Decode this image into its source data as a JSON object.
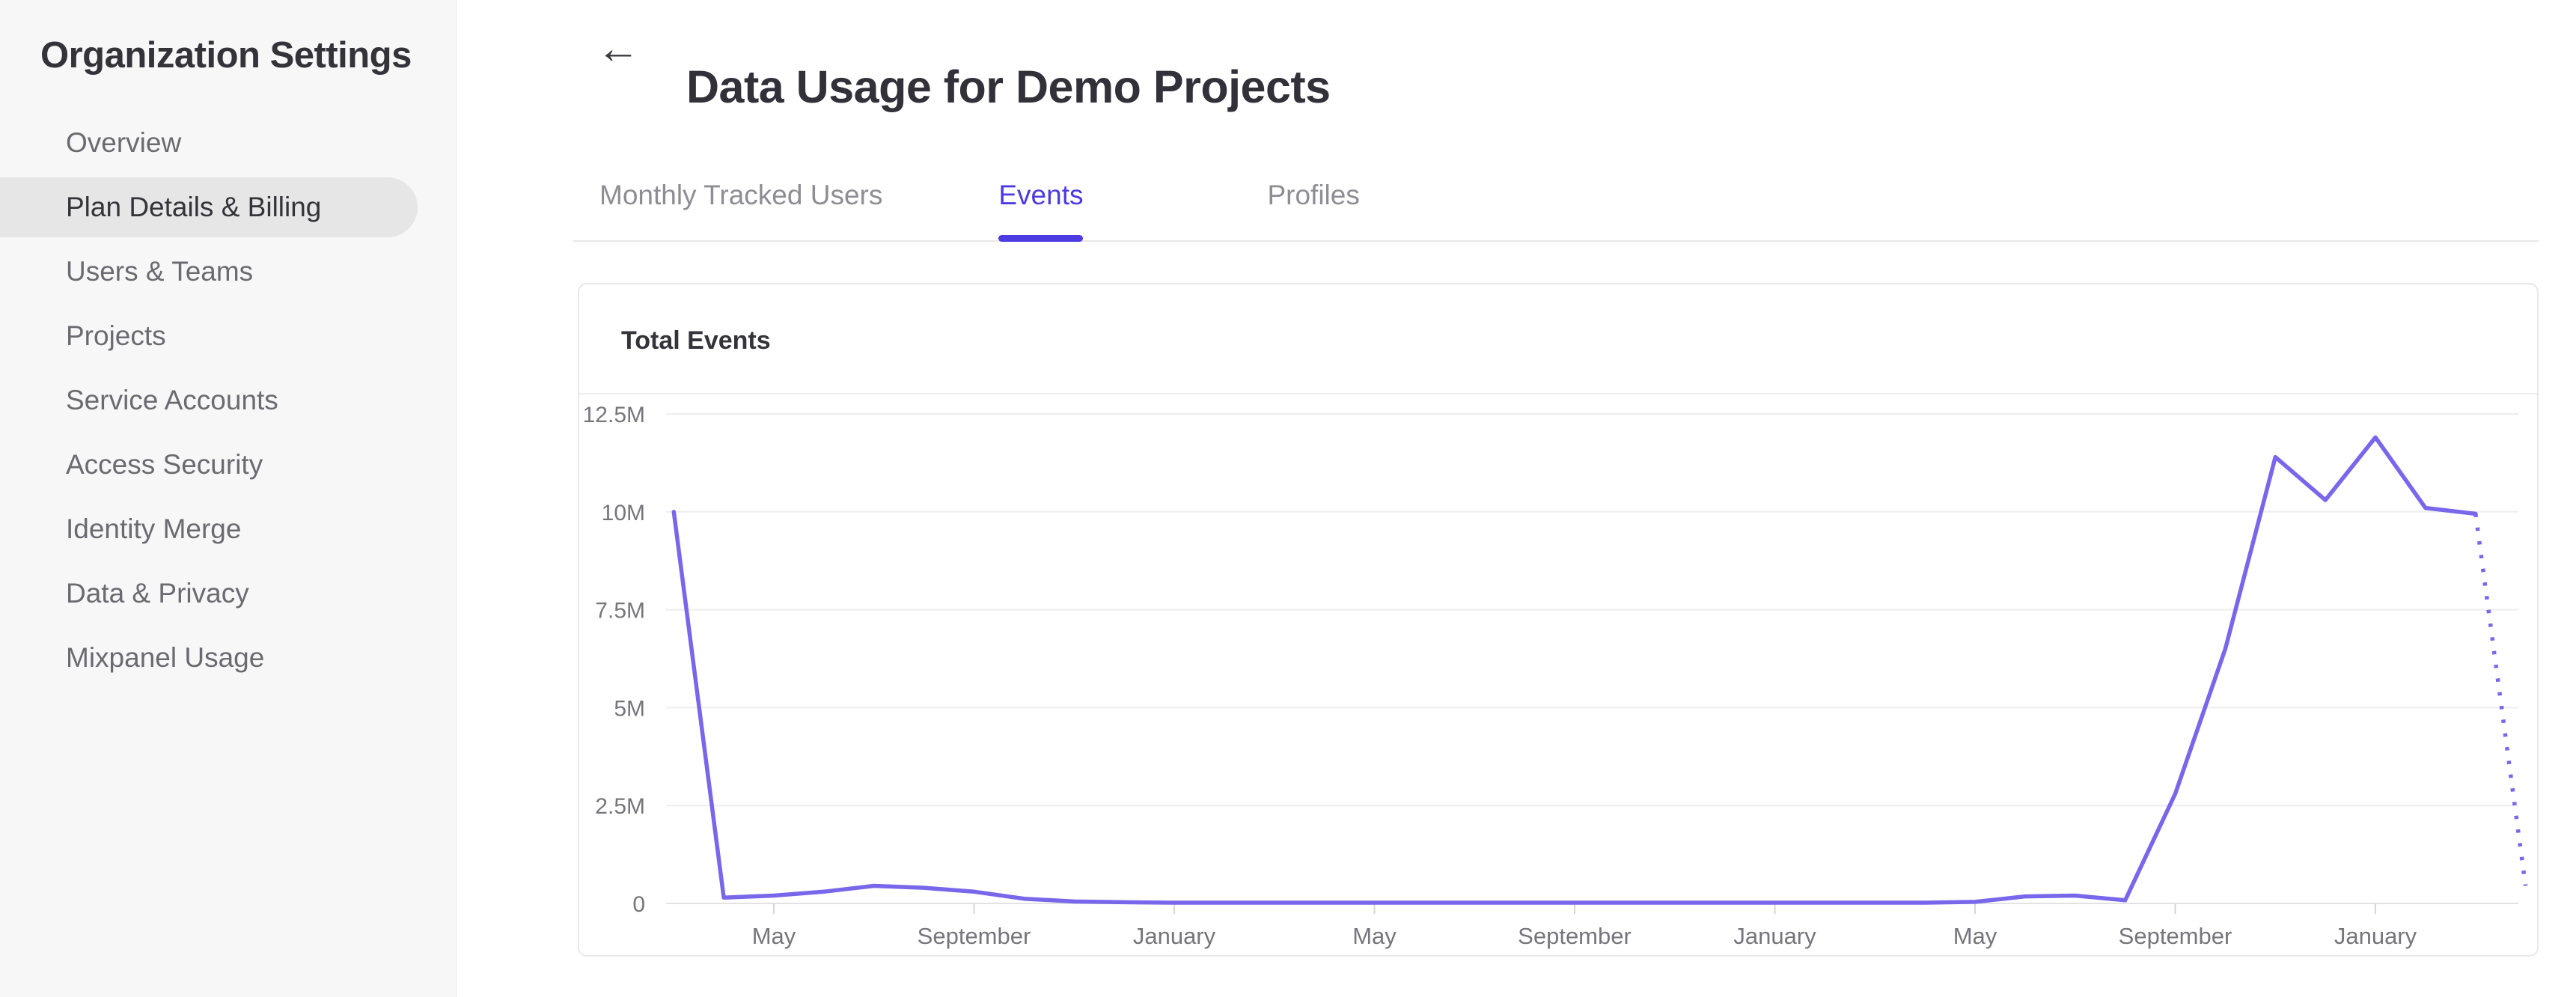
{
  "sidebar": {
    "title": "Organization Settings",
    "items": [
      {
        "label": "Overview",
        "selected": false
      },
      {
        "label": "Plan Details & Billing",
        "selected": true
      },
      {
        "label": "Users & Teams",
        "selected": false
      },
      {
        "label": "Projects",
        "selected": false
      },
      {
        "label": "Service Accounts",
        "selected": false
      },
      {
        "label": "Access Security",
        "selected": false
      },
      {
        "label": "Identity Merge",
        "selected": false
      },
      {
        "label": "Data & Privacy",
        "selected": false
      },
      {
        "label": "Mixpanel Usage",
        "selected": false
      }
    ]
  },
  "header": {
    "back_icon": "←",
    "title": "Data Usage for Demo Projects"
  },
  "tabs": [
    {
      "label": "Monthly Tracked Users",
      "active": false
    },
    {
      "label": "Events",
      "active": true
    },
    {
      "label": "Profiles",
      "active": false
    }
  ],
  "card": {
    "title": "Total Events"
  },
  "colors": {
    "accent": "#4B3BE0",
    "line": "#7867EB",
    "sidebar_selected_bg": "#e6e6e6",
    "gridline": "#ededed",
    "axis_line": "#e2e2e2",
    "tick": "#d6d6d6",
    "axis_label": "#76757c"
  },
  "chart_data": {
    "type": "line",
    "title": "Total Events",
    "series_name": "Total Events",
    "unit": "events",
    "xlabel": "",
    "ylabel": "",
    "y_tick_labels": [
      "0",
      "2.5M",
      "5M",
      "7.5M",
      "10M",
      "12.5M"
    ],
    "y_max_millions": 12.5,
    "ylim": [
      0,
      12500000
    ],
    "grid": true,
    "legend": false,
    "x_tick_labels": [
      "May",
      "September",
      "January",
      "May",
      "September",
      "January",
      "May",
      "September",
      "January"
    ],
    "x_tick_point_indices": [
      2,
      6,
      10,
      14,
      18,
      22,
      26,
      30,
      34
    ],
    "points_are_monthly": true,
    "values_millions": [
      10,
      0.15,
      0.2,
      0.3,
      0.45,
      0.4,
      0.3,
      0.12,
      0.05,
      0.03,
      0.02,
      0.02,
      0.02,
      0.02,
      0.02,
      0.02,
      0.02,
      0.02,
      0.02,
      0.02,
      0.02,
      0.02,
      0.02,
      0.02,
      0.02,
      0.02,
      0.04,
      0.18,
      0.2,
      0.08,
      2.8,
      6.5,
      11.4,
      10.3,
      11.9,
      10.1,
      9.95,
      0.45
    ],
    "dashed_tail_points": 1
  }
}
